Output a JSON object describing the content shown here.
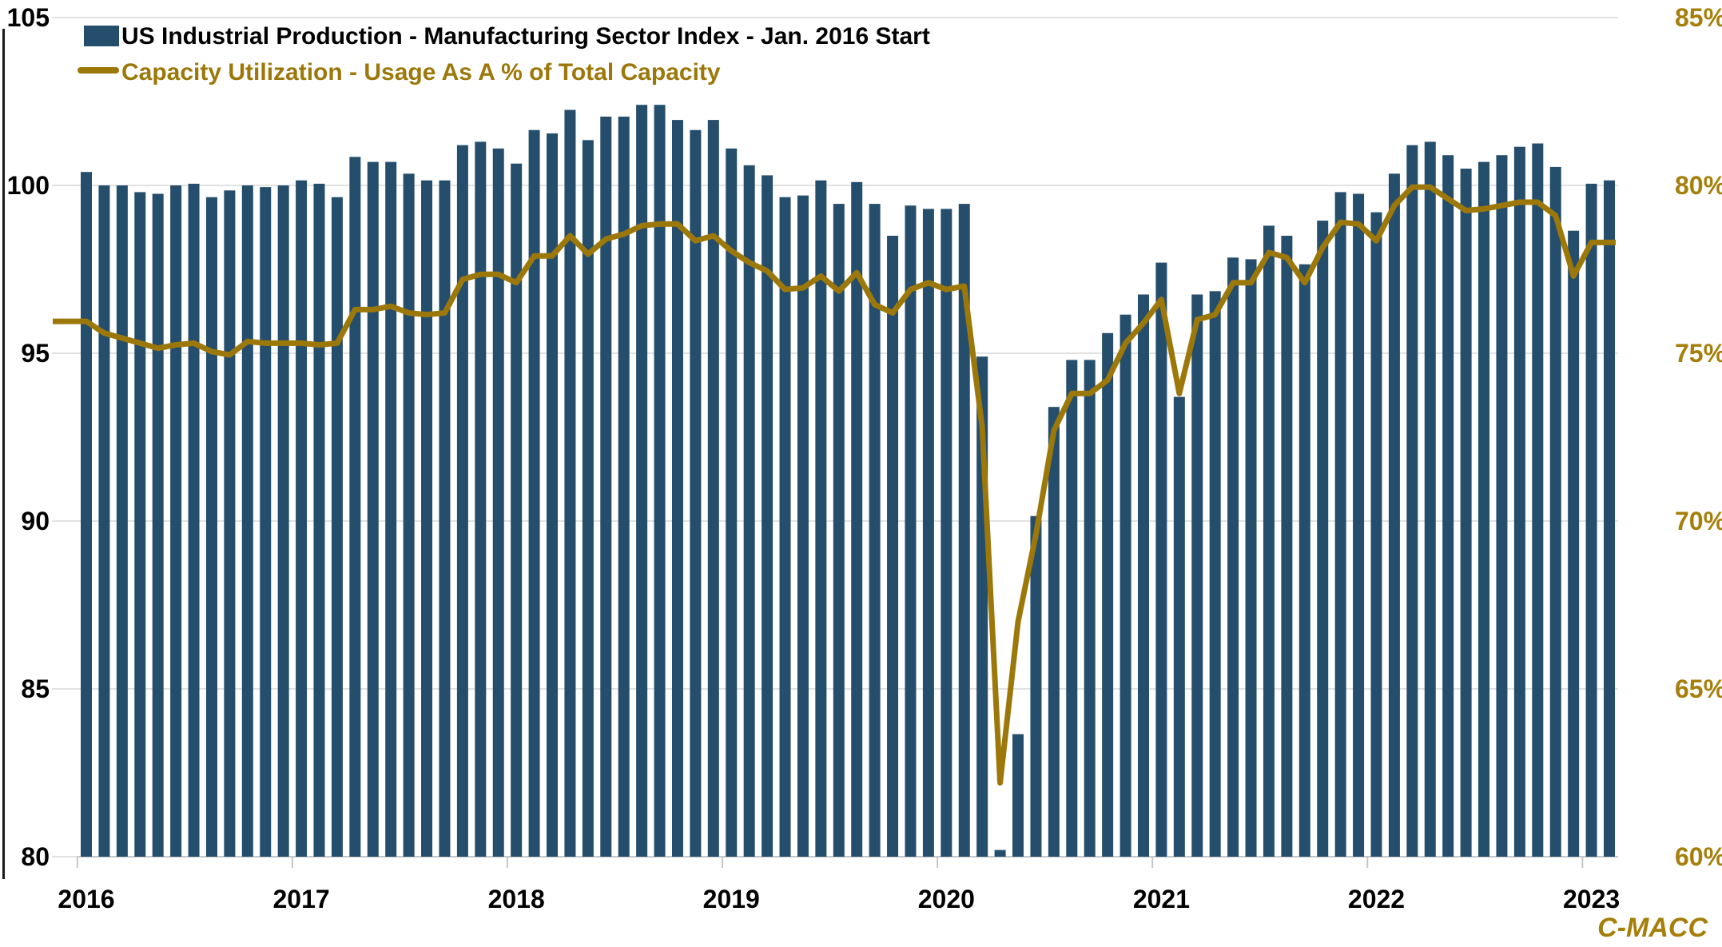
{
  "watermark": "C-MACC",
  "colors": {
    "bar": "#254E6C",
    "line": "#9C780A",
    "right_axis_text": "#A67F0B",
    "left_axis_text": "#000000",
    "x_axis_text": "#000000",
    "gridline": "#D9D9D9",
    "axis_line": "#C6C6C6",
    "left_spine": "#1A1A1A",
    "background": "#FFFFFF",
    "watermark": "#A67F0B"
  },
  "legend": {
    "series1_label": "US Industrial Production - Manufacturing Sector Index - Jan. 2016 Start",
    "series2_label": "Capacity Utilization - Usage As A % of Total Capacity"
  },
  "chart_data": {
    "type": "bar",
    "subtype": "bar-plus-line-dual-axis",
    "title": "",
    "xlabel": "",
    "ylabel_left": "",
    "ylabel_right": "",
    "grid": "horizontal-on",
    "legend_position": "top-left-inside",
    "left_axis": {
      "min": 80,
      "max": 105,
      "tick_interval": 5,
      "ticks": [
        "105",
        "100",
        "95",
        "90",
        "85",
        "80"
      ]
    },
    "right_axis": {
      "min": 60,
      "max": 85,
      "tick_interval": 5,
      "ticks": [
        "85%",
        "80%",
        "75%",
        "70%",
        "65%",
        "60%"
      ]
    },
    "x_tick_labels": [
      "2016",
      "2017",
      "2018",
      "2019",
      "2020",
      "2021",
      "2022",
      "2023"
    ],
    "categories": [
      "Jan 2016",
      "Feb 2016",
      "Mar 2016",
      "Apr 2016",
      "May 2016",
      "Jun 2016",
      "Jul 2016",
      "Aug 2016",
      "Sep 2016",
      "Oct 2016",
      "Nov 2016",
      "Dec 2016",
      "Jan 2017",
      "Feb 2017",
      "Mar 2017",
      "Apr 2017",
      "May 2017",
      "Jun 2017",
      "Jul 2017",
      "Aug 2017",
      "Sep 2017",
      "Oct 2017",
      "Nov 2017",
      "Dec 2017",
      "Jan 2018",
      "Feb 2018",
      "Mar 2018",
      "Apr 2018",
      "May 2018",
      "Jun 2018",
      "Jul 2018",
      "Aug 2018",
      "Sep 2018",
      "Oct 2018",
      "Nov 2018",
      "Dec 2018",
      "Jan 2019",
      "Feb 2019",
      "Mar 2019",
      "Apr 2019",
      "May 2019",
      "Jun 2019",
      "Jul 2019",
      "Aug 2019",
      "Sep 2019",
      "Oct 2019",
      "Nov 2019",
      "Dec 2019",
      "Jan 2020",
      "Feb 2020",
      "Mar 2020",
      "Apr 2020",
      "May 2020",
      "Jun 2020",
      "Jul 2020",
      "Aug 2020",
      "Sep 2020",
      "Oct 2020",
      "Nov 2020",
      "Dec 2020",
      "Jan 2021",
      "Feb 2021",
      "Mar 2021",
      "Apr 2021",
      "May 2021",
      "Jun 2021",
      "Jul 2021",
      "Aug 2021",
      "Sep 2021",
      "Oct 2021",
      "Nov 2021",
      "Dec 2021",
      "Jan 2022",
      "Feb 2022",
      "Mar 2022",
      "Apr 2022",
      "May 2022",
      "Jun 2022",
      "Jul 2022",
      "Aug 2022",
      "Sep 2022",
      "Oct 2022",
      "Nov 2022",
      "Dec 2022",
      "Jan 2023",
      "Feb 2023"
    ],
    "series": [
      {
        "name": "US Industrial Production - Manufacturing Sector Index - Jan. 2016 Start",
        "type": "bar",
        "axis": "left",
        "color": "#254E6C",
        "values": [
          100.4,
          100.0,
          100.0,
          99.8,
          99.75,
          100.0,
          100.05,
          99.65,
          99.85,
          100.0,
          99.95,
          100.0,
          100.15,
          100.05,
          99.65,
          100.85,
          100.7,
          100.7,
          100.35,
          100.15,
          100.15,
          101.2,
          101.3,
          101.1,
          100.65,
          101.65,
          101.55,
          102.25,
          101.35,
          102.05,
          102.05,
          102.4,
          102.4,
          101.95,
          101.65,
          101.95,
          101.1,
          100.6,
          100.3,
          99.65,
          99.7,
          100.15,
          99.45,
          100.1,
          99.45,
          98.5,
          99.4,
          99.3,
          99.3,
          99.45,
          94.9,
          80.2,
          83.65,
          90.15,
          93.4,
          94.8,
          94.8,
          95.6,
          96.15,
          96.75,
          97.7,
          93.7,
          96.75,
          96.85,
          97.85,
          97.8,
          98.8,
          98.5,
          97.65,
          98.95,
          99.8,
          99.75,
          99.2,
          100.35,
          101.2,
          101.3,
          100.9,
          100.5,
          100.7,
          100.9,
          101.15,
          101.25,
          100.55,
          98.65,
          100.05,
          100.15
        ]
      },
      {
        "name": "Capacity Utilization - Usage As A % of Total Capacity",
        "type": "line",
        "axis": "right",
        "color": "#9C780A",
        "values": [
          75.95,
          75.6,
          75.45,
          75.3,
          75.15,
          75.25,
          75.3,
          75.05,
          74.95,
          75.35,
          75.3,
          75.3,
          75.3,
          75.25,
          75.3,
          76.3,
          76.3,
          76.4,
          76.2,
          76.15,
          76.2,
          77.2,
          77.35,
          77.35,
          77.1,
          77.9,
          77.9,
          78.5,
          77.95,
          78.4,
          78.55,
          78.8,
          78.85,
          78.85,
          78.35,
          78.5,
          78.05,
          77.7,
          77.45,
          76.9,
          76.95,
          77.3,
          76.85,
          77.4,
          76.45,
          76.2,
          76.9,
          77.1,
          76.9,
          77.0,
          72.8,
          62.2,
          67.0,
          69.6,
          72.7,
          73.8,
          73.8,
          74.2,
          75.3,
          75.9,
          76.6,
          73.8,
          76.0,
          76.15,
          77.1,
          77.1,
          78.0,
          77.85,
          77.1,
          78.15,
          78.9,
          78.85,
          78.35,
          79.4,
          79.95,
          79.95,
          79.6,
          79.25,
          79.3,
          79.4,
          79.5,
          79.5,
          79.1,
          77.3,
          78.3,
          78.3
        ]
      }
    ]
  }
}
